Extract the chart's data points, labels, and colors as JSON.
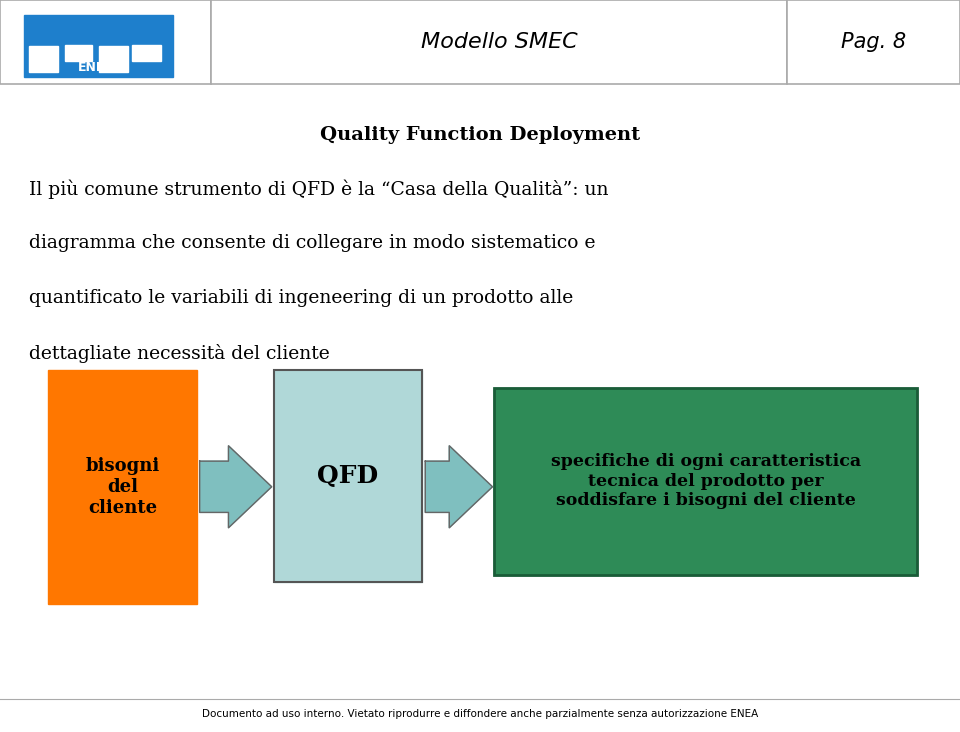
{
  "title_header": "Modello SMEC",
  "page_header": "Pag. 8",
  "section_title": "Quality Function Deployment",
  "body_lines": [
    "Il più comune strumento di QFD è la “Casa della Qualità”: un",
    "diagramma che consente di collegare in modo sistematico e",
    "quantificato le variabili di ingeneering di un prodotto alle",
    "dettagliate necessità del cliente"
  ],
  "box1_text": "bisogni\ndel\ncliente",
  "box1_color": "#FF7700",
  "box2_text": "QFD",
  "box2_color": "#B0D8D8",
  "box3_text": "specifiche di ogni caratteristica\ntecnica del prodotto per\nsoddisfare i bisogni del cliente",
  "box3_color": "#2E8B57",
  "box3_border": "#1A5C38",
  "arrow_color": "#7FBFBF",
  "footer_text": "Documento ad uso interno. Vietato riprodurre e diffondere anche parzialmente senza autorizzazione ENEA",
  "header_line_color": "#AAAAAA",
  "background_color": "#FFFFFF",
  "text_color": "#000000",
  "enea_logo_color": "#1E7FCC"
}
